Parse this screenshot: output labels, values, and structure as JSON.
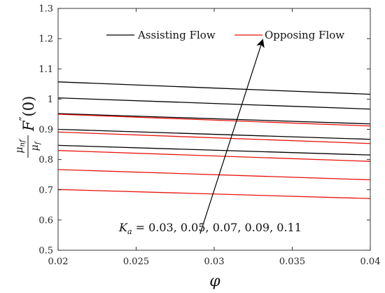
{
  "chart_data": {
    "type": "line",
    "title": "",
    "xlabel": "φ",
    "ylabel": {
      "numerator": "μ",
      "numerator_sub": "nf",
      "denominator": "μ",
      "denominator_sub": "f",
      "function": "F",
      "prime": "″",
      "argument": "(0)"
    },
    "xlim": [
      0.02,
      0.04
    ],
    "ylim": [
      0.5,
      1.3
    ],
    "x_ticks": [
      "0.02",
      "0.025",
      "0.03",
      "0.035",
      "0.04"
    ],
    "y_ticks": [
      "0.5",
      "0.6",
      "0.7",
      "0.8",
      "0.9",
      "1",
      "1.1",
      "1.2",
      "1.3"
    ],
    "x": [
      0.02,
      0.04
    ],
    "legend": {
      "placement": "top",
      "entries": [
        {
          "label": "Assisting Flow",
          "color": "#000000"
        },
        {
          "label": "Opposing Flow",
          "color": "#e8140c"
        }
      ]
    },
    "annotation": {
      "text": "K",
      "sub": "a",
      "rest": " = 0.03, 0.05, 0.07, 0.09, 0.11",
      "arrow_from": [
        0.0291,
        0.555
      ],
      "arrow_to": [
        0.0331,
        1.195
      ]
    },
    "series": [
      {
        "group": "Assisting Flow",
        "color": "#000000",
        "values": [
          1.057,
          1.016
        ]
      },
      {
        "group": "Assisting Flow",
        "color": "#000000",
        "values": [
          1.004,
          0.967
        ]
      },
      {
        "group": "Assisting Flow",
        "color": "#000000",
        "values": [
          0.952,
          0.918
        ]
      },
      {
        "group": "Assisting Flow",
        "color": "#000000",
        "values": [
          0.9,
          0.867
        ]
      },
      {
        "group": "Assisting Flow",
        "color": "#000000",
        "values": [
          0.847,
          0.815
        ]
      },
      {
        "group": "Opposing Flow",
        "color": "#e8140c",
        "values": [
          0.95,
          0.911
        ]
      },
      {
        "group": "Opposing Flow",
        "color": "#e8140c",
        "values": [
          0.891,
          0.853
        ]
      },
      {
        "group": "Opposing Flow",
        "color": "#e8140c",
        "values": [
          0.83,
          0.794
        ]
      },
      {
        "group": "Opposing Flow",
        "color": "#e8140c",
        "values": [
          0.767,
          0.733
        ]
      },
      {
        "group": "Opposing Flow",
        "color": "#e8140c",
        "values": [
          0.701,
          0.671
        ]
      }
    ]
  }
}
